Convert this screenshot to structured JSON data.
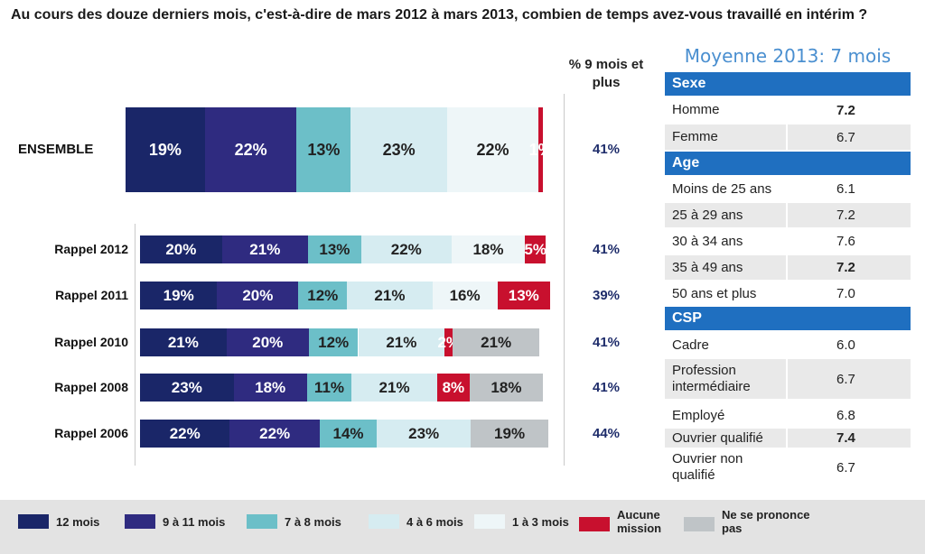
{
  "title": "Au cours des douze derniers mois, c'est-à-dire de mars 2012 à mars 2013, combien de temps avez-vous travaillé en intérim ?",
  "pct_header": "% 9 mois et plus",
  "chart_data": {
    "type": "bar",
    "orientation": "horizontal-stacked-100",
    "series_names": [
      "12 mois",
      "9 à 11 mois",
      "7 à 8 mois",
      "4 à 6 mois",
      "1 à 3 mois",
      "Aucune mission",
      "Ne se prononce pas"
    ],
    "colors": [
      "#1a2668",
      "#2f2b80",
      "#6cbfc8",
      "#d6ecf1",
      "#eef6f8",
      "#c8102e",
      "#bfc4c7"
    ],
    "rows": [
      {
        "label": "ENSEMBLE",
        "values": [
          19,
          22,
          13,
          23,
          22,
          1,
          0
        ],
        "text": [
          "19%",
          "22%",
          "13%",
          "23%",
          "22%",
          "1%",
          ""
        ],
        "pct9": "41%"
      },
      {
        "label": "Rappel 2012",
        "values": [
          20,
          21,
          13,
          22,
          18,
          5,
          0
        ],
        "text": [
          "20%",
          "21%",
          "13%",
          "22%",
          "18%",
          "5%",
          ""
        ],
        "pct9": "41%"
      },
      {
        "label": "Rappel 2011",
        "values": [
          19,
          20,
          12,
          21,
          16,
          13,
          0
        ],
        "text": [
          "19%",
          "20%",
          "12%",
          "21%",
          "16%",
          "13%",
          ""
        ],
        "pct9": "39%"
      },
      {
        "label": "Rappel 2010",
        "values": [
          21,
          20,
          12,
          21,
          0,
          2,
          21
        ],
        "text": [
          "21%",
          "20%",
          "12%",
          "21%",
          "",
          "2%",
          "21%"
        ],
        "pct9": "41%"
      },
      {
        "label": "Rappel 2008",
        "values": [
          23,
          18,
          11,
          21,
          0,
          8,
          18
        ],
        "text": [
          "23%",
          "18%",
          "11%",
          "21%",
          "",
          "8%",
          "18%"
        ],
        "pct9": "41%"
      },
      {
        "label": "Rappel 2006",
        "values": [
          22,
          22,
          14,
          23,
          0,
          0,
          19
        ],
        "text": [
          "22%",
          "22%",
          "14%",
          "23%",
          "",
          "",
          "19%"
        ],
        "pct9": "44%"
      }
    ]
  },
  "side_table": {
    "title": "Moyenne 2013: 7 mois",
    "sections": [
      {
        "header": "Sexe",
        "rows": [
          {
            "label": "Homme",
            "value": "7.2",
            "bold": true
          },
          {
            "label": "Femme",
            "value": "6.7",
            "bold": false
          }
        ]
      },
      {
        "header": "Age",
        "rows": [
          {
            "label": "Moins de 25 ans",
            "value": "6.1",
            "bold": false
          },
          {
            "label": "25 à 29 ans",
            "value": "7.2",
            "bold": false
          },
          {
            "label": "30 à 34 ans",
            "value": "7.6",
            "bold": false
          },
          {
            "label": "35 à 49 ans",
            "value": "7.2",
            "bold": true
          },
          {
            "label": "50 ans et plus",
            "value": "7.0",
            "bold": false
          }
        ]
      },
      {
        "header": "CSP",
        "rows": [
          {
            "label": "Cadre",
            "value": "6.0",
            "bold": false
          },
          {
            "label": "Profession intermédiaire",
            "value": "6.7",
            "bold": false
          },
          {
            "label": "Employé",
            "value": "6.8",
            "bold": false
          },
          {
            "label": "Ouvrier qualifié",
            "value": "7.4",
            "bold": true
          },
          {
            "label": "Ouvrier non qualifié",
            "value": "6.7",
            "bold": false
          }
        ]
      }
    ]
  },
  "legend": [
    {
      "label": "12 mois",
      "color": "#1a2668"
    },
    {
      "label": "9 à 11 mois",
      "color": "#2f2b80"
    },
    {
      "label": "7 à 8 mois",
      "color": "#6cbfc8"
    },
    {
      "label": "4 à 6 mois",
      "color": "#d6ecf1"
    },
    {
      "label": "1 à 3 mois",
      "color": "#eef6f8"
    },
    {
      "label": "Aucune mission",
      "color": "#c8102e"
    },
    {
      "label": "Ne se prononce pas",
      "color": "#bfc4c7"
    }
  ]
}
